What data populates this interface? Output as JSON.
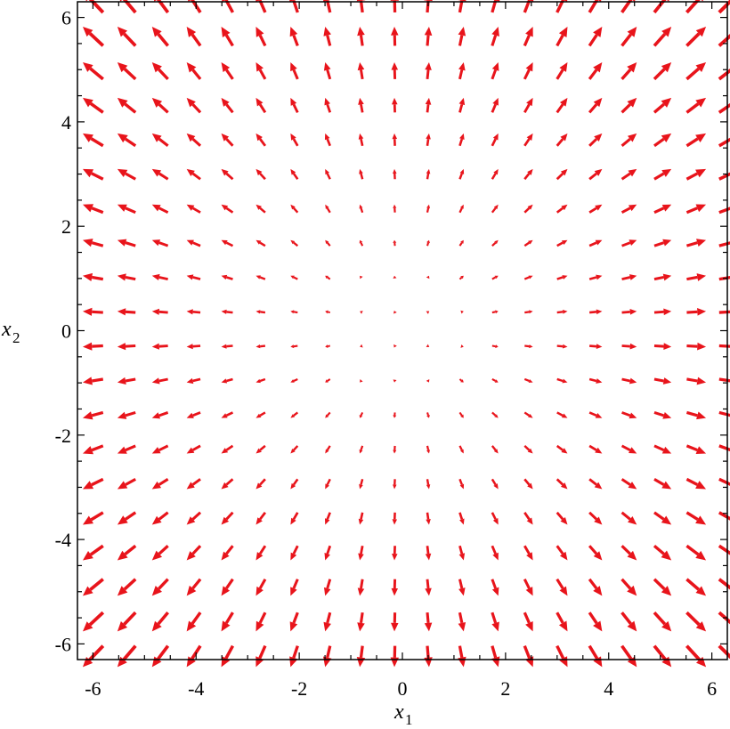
{
  "chart_data": {
    "type": "vector-field",
    "title": "",
    "xlabel": {
      "main": "x",
      "sub": "1"
    },
    "ylabel": {
      "main": "x",
      "sub": "2"
    },
    "xlim": [
      -6.3,
      6.3
    ],
    "ylim": [
      -6.3,
      6.3
    ],
    "x_ticks": [
      -6,
      -4,
      -2,
      0,
      2,
      4,
      6
    ],
    "x_tick_labels": [
      "-6",
      "-4",
      "-2",
      "0",
      "2",
      "4",
      "6"
    ],
    "y_ticks": [
      -6,
      -4,
      -2,
      0,
      2,
      4,
      6
    ],
    "y_tick_labels": [
      "-6",
      "-4",
      "-2",
      "0",
      "2",
      "4",
      "6"
    ],
    "grid": false,
    "legend": "none",
    "field": {
      "u": "x1",
      "v": "x2",
      "description": "arrows point radially outward from origin"
    },
    "grid_x": [
      -6.0,
      -5.35,
      -4.7,
      -4.05,
      -3.4,
      -2.75,
      -2.1,
      -1.45,
      -0.8,
      -0.15,
      0.5,
      1.15,
      1.8,
      2.45,
      3.1,
      3.75,
      4.4,
      5.05,
      5.7,
      6.35
    ],
    "grid_y": [
      6.3,
      5.64,
      4.98,
      4.32,
      3.66,
      3.0,
      2.34,
      1.68,
      1.02,
      0.36,
      -0.3,
      -0.96,
      -1.62,
      -2.28,
      -2.94,
      -3.6,
      -4.26,
      -4.92,
      -5.58,
      -6.24
    ],
    "arrow_color": "#e8141b"
  }
}
